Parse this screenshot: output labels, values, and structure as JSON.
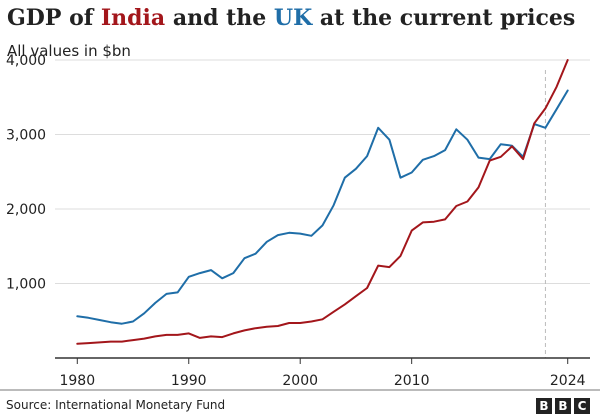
{
  "title": {
    "part1": "GDP of ",
    "india": "India",
    "part2": " and the ",
    "uk": "UK",
    "part3": " at the current prices"
  },
  "subtitle": "All values in $bn",
  "source": "Source: International Monetary Fund",
  "logo": [
    "B",
    "B",
    "C"
  ],
  "colors": {
    "india": "#a3161b",
    "uk": "#1f6ea8",
    "grid": "#dddddd",
    "axis": "#333333",
    "reference": "#bbbbbb",
    "text": "#222222"
  },
  "chart_data": {
    "type": "line",
    "title": "GDP of India and the UK at the current prices",
    "subtitle": "All values in $bn",
    "xlim": [
      1978,
      2026
    ],
    "ylim": [
      0,
      4000
    ],
    "yticks": [
      1000,
      2000,
      3000,
      4000
    ],
    "ytick_labels": [
      "1,000",
      "2,000",
      "3,000",
      "4,000"
    ],
    "xticks": [
      1980,
      1990,
      2000,
      2010,
      2024
    ],
    "xtick_labels": [
      "1980",
      "1990",
      "2000",
      "2010",
      "2024"
    ],
    "grid": true,
    "reference_line_x": 2022,
    "x": [
      1980,
      1981,
      1982,
      1983,
      1984,
      1985,
      1986,
      1987,
      1988,
      1989,
      1990,
      1991,
      1992,
      1993,
      1994,
      1995,
      1996,
      1997,
      1998,
      1999,
      2000,
      2001,
      2002,
      2003,
      2004,
      2005,
      2006,
      2007,
      2008,
      2009,
      2010,
      2011,
      2012,
      2013,
      2014,
      2015,
      2016,
      2017,
      2018,
      2019,
      2020,
      2021,
      2022,
      2023,
      2024
    ],
    "series": [
      {
        "key": "uk",
        "color": "#1f6ea8",
        "values": [
          560,
          540,
          510,
          480,
          460,
          490,
          600,
          740,
          860,
          880,
          1090,
          1140,
          1180,
          1070,
          1140,
          1340,
          1400,
          1560,
          1650,
          1680,
          1670,
          1640,
          1780,
          2050,
          2420,
          2540,
          2710,
          3090,
          2930,
          2420,
          2490,
          2660,
          2710,
          2790,
          3070,
          2930,
          2690,
          2670,
          2870,
          2850,
          2700,
          3140,
          3090,
          3340,
          3590
        ]
      },
      {
        "key": "india",
        "color": "#a3161b",
        "values": [
          190,
          200,
          210,
          220,
          220,
          240,
          260,
          290,
          310,
          310,
          330,
          270,
          290,
          280,
          330,
          370,
          400,
          420,
          430,
          470,
          470,
          490,
          520,
          620,
          720,
          830,
          940,
          1240,
          1220,
          1370,
          1710,
          1820,
          1830,
          1860,
          2040,
          2100,
          2290,
          2650,
          2700,
          2840,
          2670,
          3150,
          3350,
          3640,
          4000
        ]
      }
    ]
  }
}
